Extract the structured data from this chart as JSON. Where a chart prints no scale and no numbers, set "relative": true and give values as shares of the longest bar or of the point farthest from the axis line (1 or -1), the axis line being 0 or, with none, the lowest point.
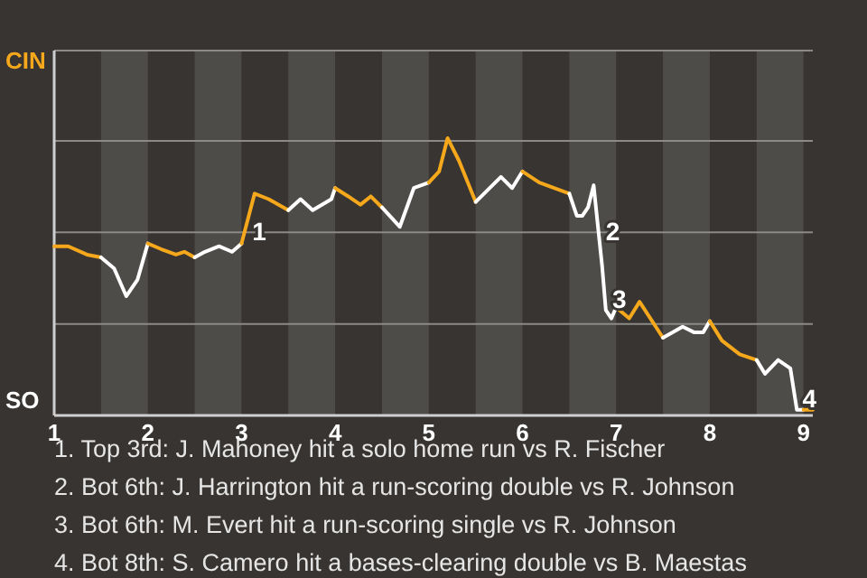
{
  "chart_data": {
    "type": "line",
    "relative": true,
    "xlim": [
      1,
      9.1
    ],
    "xticks": [
      1,
      2,
      3,
      4,
      5,
      6,
      7,
      8,
      9
    ],
    "ref_lines": [
      {
        "axis": "y",
        "value": 0.33,
        "color": "#8c8a87"
      },
      {
        "axis": "y",
        "value": 0.66,
        "color": "#8c8a87"
      },
      {
        "axis": "y",
        "value": 0.99,
        "color": "#8c8a87"
      }
    ],
    "marker": "none",
    "series": [
      {
        "color": "#f5a81c",
        "x": [
          1,
          1.15,
          1.35,
          1.5
        ],
        "values": [
          0.61,
          0.61,
          0.58,
          0.57
        ]
      },
      {
        "color": "#ffffff",
        "x": [
          1.5,
          1.64,
          1.77,
          1.89,
          2
        ],
        "values": [
          0.57,
          0.53,
          0.43,
          0.49,
          0.62
        ]
      },
      {
        "color": "#f5a81c",
        "x": [
          2,
          2.14,
          2.3,
          2.39,
          2.5
        ],
        "values": [
          0.62,
          0.6,
          0.58,
          0.59,
          0.57
        ]
      },
      {
        "color": "#ffffff",
        "x": [
          2.5,
          2.61,
          2.76,
          2.9,
          3
        ],
        "values": [
          0.57,
          0.59,
          0.61,
          0.59,
          0.62
        ]
      },
      {
        "color": "#f5a81c",
        "x": [
          3,
          3.14,
          3.29,
          3.5
        ],
        "values": [
          0.62,
          0.8,
          0.78,
          0.74
        ]
      },
      {
        "color": "#ffffff",
        "x": [
          3.5,
          3.63,
          3.76,
          3.96,
          4
        ],
        "values": [
          0.74,
          0.78,
          0.74,
          0.78,
          0.82
        ]
      },
      {
        "color": "#f5a81c",
        "x": [
          4,
          4.14,
          4.27,
          4.38,
          4.5
        ],
        "values": [
          0.82,
          0.79,
          0.76,
          0.79,
          0.75
        ]
      },
      {
        "color": "#ffffff",
        "x": [
          4.5,
          4.69,
          4.84,
          5
        ],
        "values": [
          0.75,
          0.68,
          0.82,
          0.84
        ]
      },
      {
        "color": "#f5a81c",
        "x": [
          5,
          5.11,
          5.2,
          5.32,
          5.5
        ],
        "values": [
          0.84,
          0.88,
          1,
          0.92,
          0.77
        ]
      },
      {
        "color": "#ffffff",
        "x": [
          5.5,
          5.77,
          5.89,
          6
        ],
        "values": [
          0.77,
          0.86,
          0.82,
          0.88
        ]
      },
      {
        "color": "#f5a81c",
        "x": [
          6,
          6.18,
          6.5
        ],
        "values": [
          0.88,
          0.84,
          0.8
        ]
      },
      {
        "color": "#ffffff",
        "x": [
          6.5,
          6.58,
          6.64,
          6.7,
          6.76,
          6.8,
          6.85,
          6.89,
          6.95,
          7
        ],
        "values": [
          0.8,
          0.72,
          0.72,
          0.75,
          0.83,
          0.7,
          0.54,
          0.38,
          0.35,
          0.39
        ]
      },
      {
        "color": "#f5a81c",
        "x": [
          7,
          7.14,
          7.25,
          7.5
        ],
        "values": [
          0.39,
          0.35,
          0.41,
          0.28
        ]
      },
      {
        "color": "#ffffff",
        "x": [
          7.5,
          7.71,
          7.83,
          7.93,
          8
        ],
        "values": [
          0.28,
          0.32,
          0.3,
          0.3,
          0.34
        ]
      },
      {
        "color": "#f5a81c",
        "x": [
          8,
          8.13,
          8.32,
          8.5
        ],
        "values": [
          0.34,
          0.27,
          0.22,
          0.2
        ]
      },
      {
        "color": "#ffffff",
        "x": [
          8.5,
          8.59,
          8.73,
          8.86,
          8.93,
          9
        ],
        "values": [
          0.2,
          0.15,
          0.2,
          0.17,
          0.02,
          0.02
        ]
      },
      {
        "color": "#f5a81c",
        "x": [
          9,
          9.1
        ],
        "values": [
          0.02,
          0.02
        ]
      }
    ],
    "bands": [
      {
        "axis": "x",
        "from": 1.5,
        "to": 2,
        "color": "#4e4c49"
      },
      {
        "axis": "x",
        "from": 2.5,
        "to": 3,
        "color": "#4e4c49"
      },
      {
        "axis": "x",
        "from": 3.5,
        "to": 4,
        "color": "#4e4c49"
      },
      {
        "axis": "x",
        "from": 4.5,
        "to": 5,
        "color": "#4e4c49"
      },
      {
        "axis": "x",
        "from": 5.5,
        "to": 6,
        "color": "#4e4c49"
      },
      {
        "axis": "x",
        "from": 6.5,
        "to": 7,
        "color": "#4e4c49"
      },
      {
        "axis": "x",
        "from": 7.5,
        "to": 8,
        "color": "#4e4c49"
      },
      {
        "axis": "x",
        "from": 8.5,
        "to": 9,
        "color": "#4e4c49"
      }
    ],
    "annotations": [
      "CIN",
      "SO",
      {
        "text": "1",
        "x": 3.035,
        "y": 0.665
      },
      {
        "text": "2",
        "x": 6.81,
        "y": 0.665
      },
      {
        "text": "3",
        "x": 6.88,
        "y": 0.42
      },
      {
        "text": "4",
        "x": 8.91,
        "y": 0.06
      },
      "1. Top 3rd: J. Mahoney hit a solo home run vs R. Fischer",
      "2. Bot 6th: J. Harrington hit a run-scoring double vs R. Johnson",
      "3. Bot 6th: M. Evert hit a run-scoring single vs R. Johnson",
      "4. Bot 8th: S. Camero hit a bases-clearing double vs B. Maestas"
    ]
  }
}
